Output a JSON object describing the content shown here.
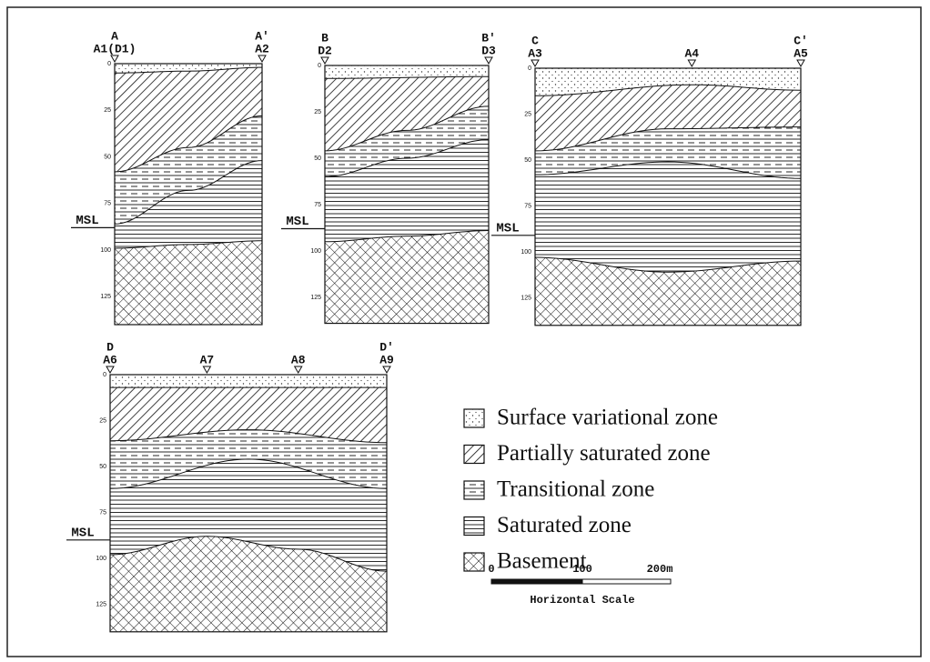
{
  "sections": [
    {
      "start": "A",
      "end": "A'",
      "boreholes": [
        "A1(D1)",
        "A2"
      ]
    },
    {
      "start": "B",
      "end": "B'",
      "boreholes": [
        "D2",
        "D3"
      ]
    },
    {
      "start": "C",
      "end": "C'",
      "boreholes": [
        "A3",
        "A4",
        "A5"
      ]
    },
    {
      "start": "D",
      "end": "D'",
      "boreholes": [
        "A6",
        "A7",
        "A8",
        "A9"
      ]
    }
  ],
  "depth_ticks": [
    0,
    25,
    50,
    75,
    100,
    125
  ],
  "msl_label": "MSL",
  "legend": [
    "Surface variational zone",
    "Partially saturated zone",
    "Transitional zone",
    "Saturated zone",
    "Basement"
  ],
  "scale": {
    "ticks": [
      "0",
      "100",
      "200m"
    ],
    "label": "Horizontal Scale"
  }
}
